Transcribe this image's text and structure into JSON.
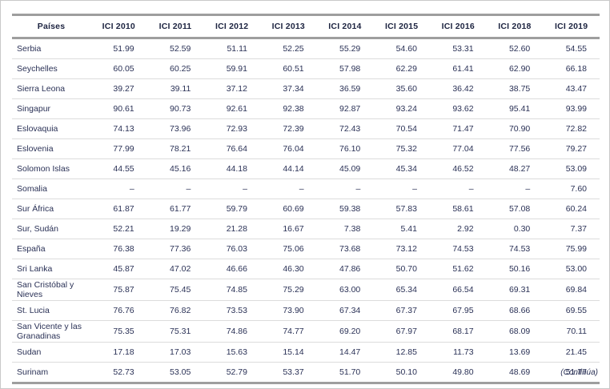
{
  "table": {
    "columns": [
      "Países",
      "ICI 2010",
      "ICI 2011",
      "ICI 2012",
      "ICI 2013",
      "ICI 2014",
      "ICI 2015",
      "ICI 2016",
      "ICI 2018",
      "ICI 2019"
    ],
    "rows": [
      {
        "country": "Serbia",
        "values": [
          "51.99",
          "52.59",
          "51.11",
          "52.25",
          "55.29",
          "54.60",
          "53.31",
          "52.60",
          "54.55"
        ]
      },
      {
        "country": "Seychelles",
        "values": [
          "60.05",
          "60.25",
          "59.91",
          "60.51",
          "57.98",
          "62.29",
          "61.41",
          "62.90",
          "66.18"
        ]
      },
      {
        "country": "Sierra Leona",
        "values": [
          "39.27",
          "39.11",
          "37.12",
          "37.34",
          "36.59",
          "35.60",
          "36.42",
          "38.75",
          "43.47"
        ]
      },
      {
        "country": "Singapur",
        "values": [
          "90.61",
          "90.73",
          "92.61",
          "92.38",
          "92.87",
          "93.24",
          "93.62",
          "95.41",
          "93.99"
        ]
      },
      {
        "country": "Eslovaquia",
        "values": [
          "74.13",
          "73.96",
          "72.93",
          "72.39",
          "72.43",
          "70.54",
          "71.47",
          "70.90",
          "72.82"
        ]
      },
      {
        "country": "Eslovenia",
        "values": [
          "77.99",
          "78.21",
          "76.64",
          "76.04",
          "76.10",
          "75.32",
          "77.04",
          "77.56",
          "79.27"
        ]
      },
      {
        "country": "Solomon Islas",
        "values": [
          "44.55",
          "45.16",
          "44.18",
          "44.14",
          "45.09",
          "45.34",
          "46.52",
          "48.27",
          "53.09"
        ]
      },
      {
        "country": "Somalia",
        "values": [
          "–",
          "–",
          "–",
          "–",
          "–",
          "–",
          "–",
          "–",
          "7.60"
        ]
      },
      {
        "country": "Sur África",
        "values": [
          "61.87",
          "61.77",
          "59.79",
          "60.69",
          "59.38",
          "57.83",
          "58.61",
          "57.08",
          "60.24"
        ]
      },
      {
        "country": "Sur, Sudán",
        "values": [
          "52.21",
          "19.29",
          "21.28",
          "16.67",
          "7.38",
          "5.41",
          "2.92",
          "0.30",
          "7.37"
        ]
      },
      {
        "country": "España",
        "values": [
          "76.38",
          "77.36",
          "76.03",
          "75.06",
          "73.68",
          "73.12",
          "74.53",
          "74.53",
          "75.99"
        ]
      },
      {
        "country": "Sri Lanka",
        "values": [
          "45.87",
          "47.02",
          "46.66",
          "46.30",
          "47.86",
          "50.70",
          "51.62",
          "50.16",
          "53.00"
        ]
      },
      {
        "country": "San Cristóbal y Nieves",
        "values": [
          "75.87",
          "75.45",
          "74.85",
          "75.29",
          "63.00",
          "65.34",
          "66.54",
          "69.31",
          "69.84"
        ]
      },
      {
        "country": "St. Lucia",
        "values": [
          "76.76",
          "76.82",
          "73.53",
          "73.90",
          "67.34",
          "67.37",
          "67.95",
          "68.66",
          "69.55"
        ]
      },
      {
        "country": "San Vicente y las Granadinas",
        "values": [
          "75.35",
          "75.31",
          "74.86",
          "74.77",
          "69.20",
          "67.97",
          "68.17",
          "68.09",
          "70.11"
        ]
      },
      {
        "country": "Sudan",
        "values": [
          "17.18",
          "17.03",
          "15.63",
          "15.14",
          "14.47",
          "12.85",
          "11.73",
          "13.69",
          "21.45"
        ]
      },
      {
        "country": "Surinam",
        "values": [
          "52.73",
          "53.05",
          "52.79",
          "53.37",
          "51.70",
          "50.10",
          "49.80",
          "48.69",
          "51.77"
        ]
      }
    ],
    "footer_note": "(Continúa)"
  },
  "colors": {
    "text": "#2a3156",
    "header_text": "#1c2340",
    "thick_border": "#9e9e9e",
    "thin_border": "#dcdcdc",
    "page_frame": "#c9c9c9",
    "background": "#ffffff"
  }
}
